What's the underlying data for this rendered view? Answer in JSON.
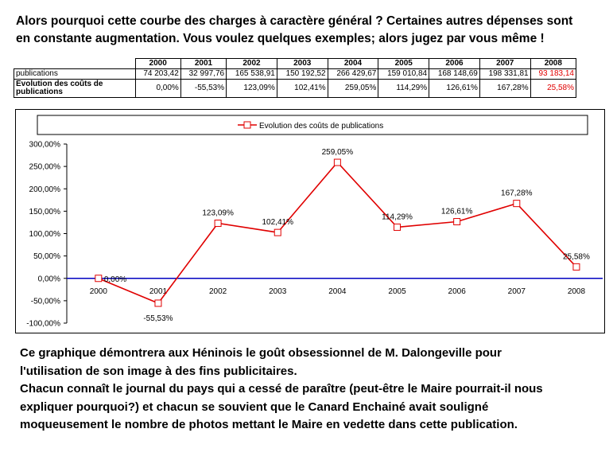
{
  "intro": {
    "line1": "Alors pourquoi cette courbe des charges à caractère général ? Certaines autres dépenses sont",
    "line2": "en constante augmentation. Vous voulez quelques exemples; alors jugez par vous même !"
  },
  "table": {
    "years": [
      "2000",
      "2001",
      "2002",
      "2003",
      "2004",
      "2005",
      "2006",
      "2007",
      "2008"
    ],
    "row1_label": "publications",
    "row1_values": [
      "74 203,42",
      "32 997,76",
      "165 538,91",
      "150 192,52",
      "266 429,67",
      "159 010,84",
      "168 148,69",
      "198 331,81",
      "93 183,14"
    ],
    "row2_label": "Evolution des coûts de publications",
    "row2_values": [
      "0,00%",
      "-55,53%",
      "123,09%",
      "102,41%",
      "259,05%",
      "114,29%",
      "126,61%",
      "167,28%",
      "25,58%"
    ],
    "highlight_color": "#e00000"
  },
  "chart_data": {
    "type": "line",
    "title": "",
    "legend": "Evolution des coûts de publications",
    "legend_position": "top",
    "categories": [
      "2000",
      "2001",
      "2002",
      "2003",
      "2004",
      "2005",
      "2006",
      "2007",
      "2008"
    ],
    "series": [
      {
        "name": "Evolution des coûts de publications",
        "values": [
          0.0,
          -55.53,
          123.09,
          102.41,
          259.05,
          114.29,
          126.61,
          167.28,
          25.58
        ],
        "labels": [
          "0,00%",
          "-55,53%",
          "123,09%",
          "102,41%",
          "259,05%",
          "114,29%",
          "126,61%",
          "167,28%",
          "25,58%"
        ],
        "color": "#e00000",
        "marker": "square"
      }
    ],
    "ylim": [
      -100,
      300
    ],
    "yticks": [
      -100,
      -50,
      0,
      50,
      100,
      150,
      200,
      250,
      300
    ],
    "ytick_labels": [
      "-100,00%",
      "-50,00%",
      "0,00%",
      "50,00%",
      "100,00%",
      "150,00%",
      "200,00%",
      "250,00%",
      "300,00%"
    ],
    "zero_line_color": "#0000c0",
    "grid": false,
    "xlabel": "",
    "ylabel": ""
  },
  "outro": {
    "line1": "Ce graphique démontrera aux Héninois le goût obsessionnel de M. Dalongeville pour",
    "line2": "l'utilisation de son image à des fins publicitaires.",
    "line3": "Chacun connaît le journal du pays qui a cessé de paraître (peut-être le Maire pourrait-il nous",
    "line4": "expliquer pourquoi?) et chacun se souvient que le Canard Enchainé avait souligné",
    "line5": "moqueusement le nombre de photos mettant le Maire en vedette dans cette publication."
  }
}
